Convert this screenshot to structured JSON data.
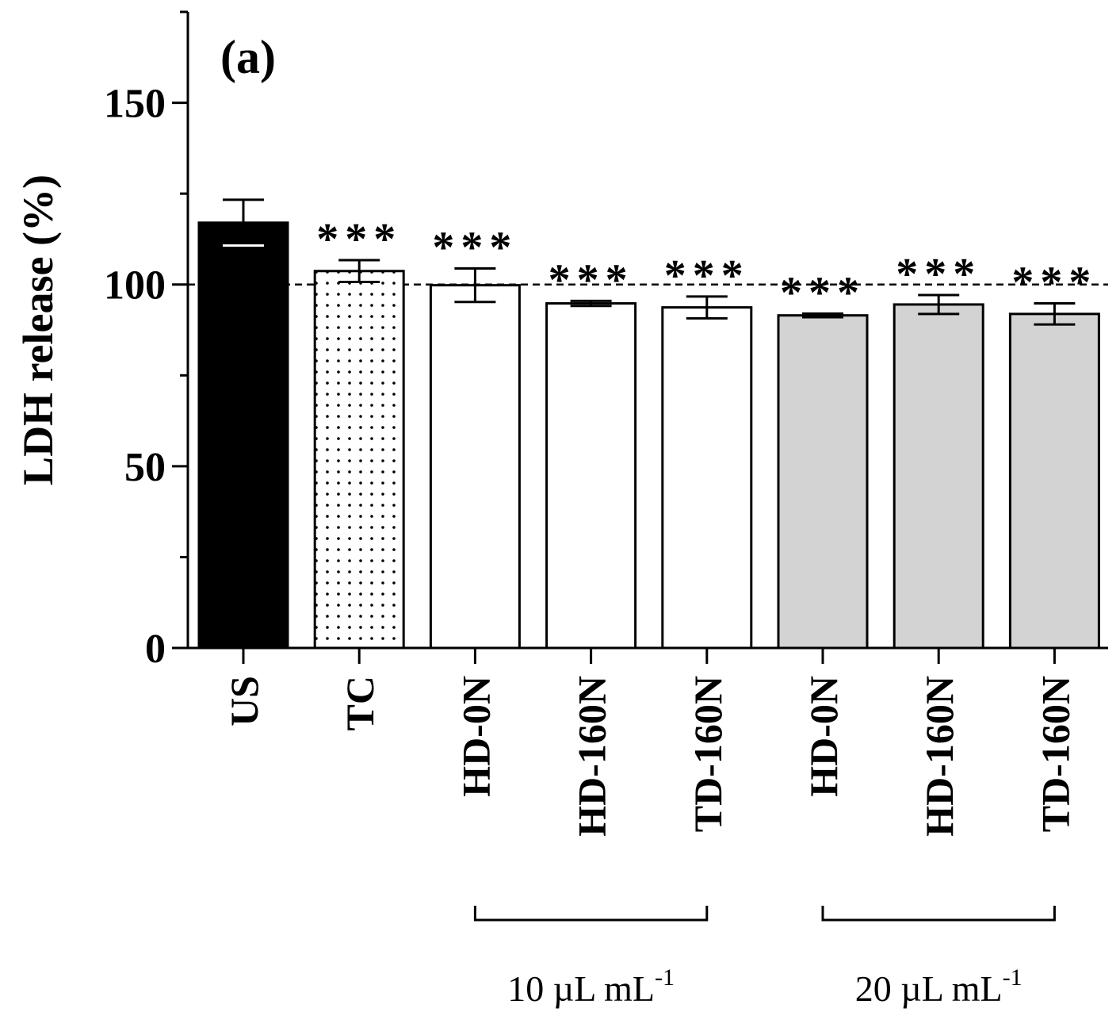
{
  "chart_data": {
    "type": "bar",
    "panel_label": "(a)",
    "ylabel": "LDH release (%)",
    "xlabel": "",
    "ylim": [
      0,
      175
    ],
    "yticks": [
      0,
      50,
      100,
      150
    ],
    "reference_line": 100,
    "categories": [
      "US",
      "TC",
      "HD-0N",
      "HD-160N",
      "TD-160N",
      "HD-0N",
      "HD-160N",
      "TD-160N"
    ],
    "values": [
      117.0,
      103.7,
      99.8,
      94.8,
      93.7,
      91.5,
      94.5,
      91.9
    ],
    "errors": [
      6.3,
      3.0,
      4.6,
      0.7,
      3.0,
      0.5,
      2.6,
      2.9
    ],
    "fills": [
      "#000000",
      "dots",
      "#ffffff",
      "#ffffff",
      "#ffffff",
      "#d3d3d3",
      "#d3d3d3",
      "#d3d3d3"
    ],
    "significance": [
      "",
      "***",
      "***",
      "***",
      "***",
      "***",
      "***",
      "***"
    ],
    "groups": [
      {
        "label": "10 µL mL",
        "superscript": "-1",
        "from": 2,
        "to": 4
      },
      {
        "label": "20 µL mL",
        "superscript": "-1",
        "from": 5,
        "to": 7
      }
    ]
  }
}
